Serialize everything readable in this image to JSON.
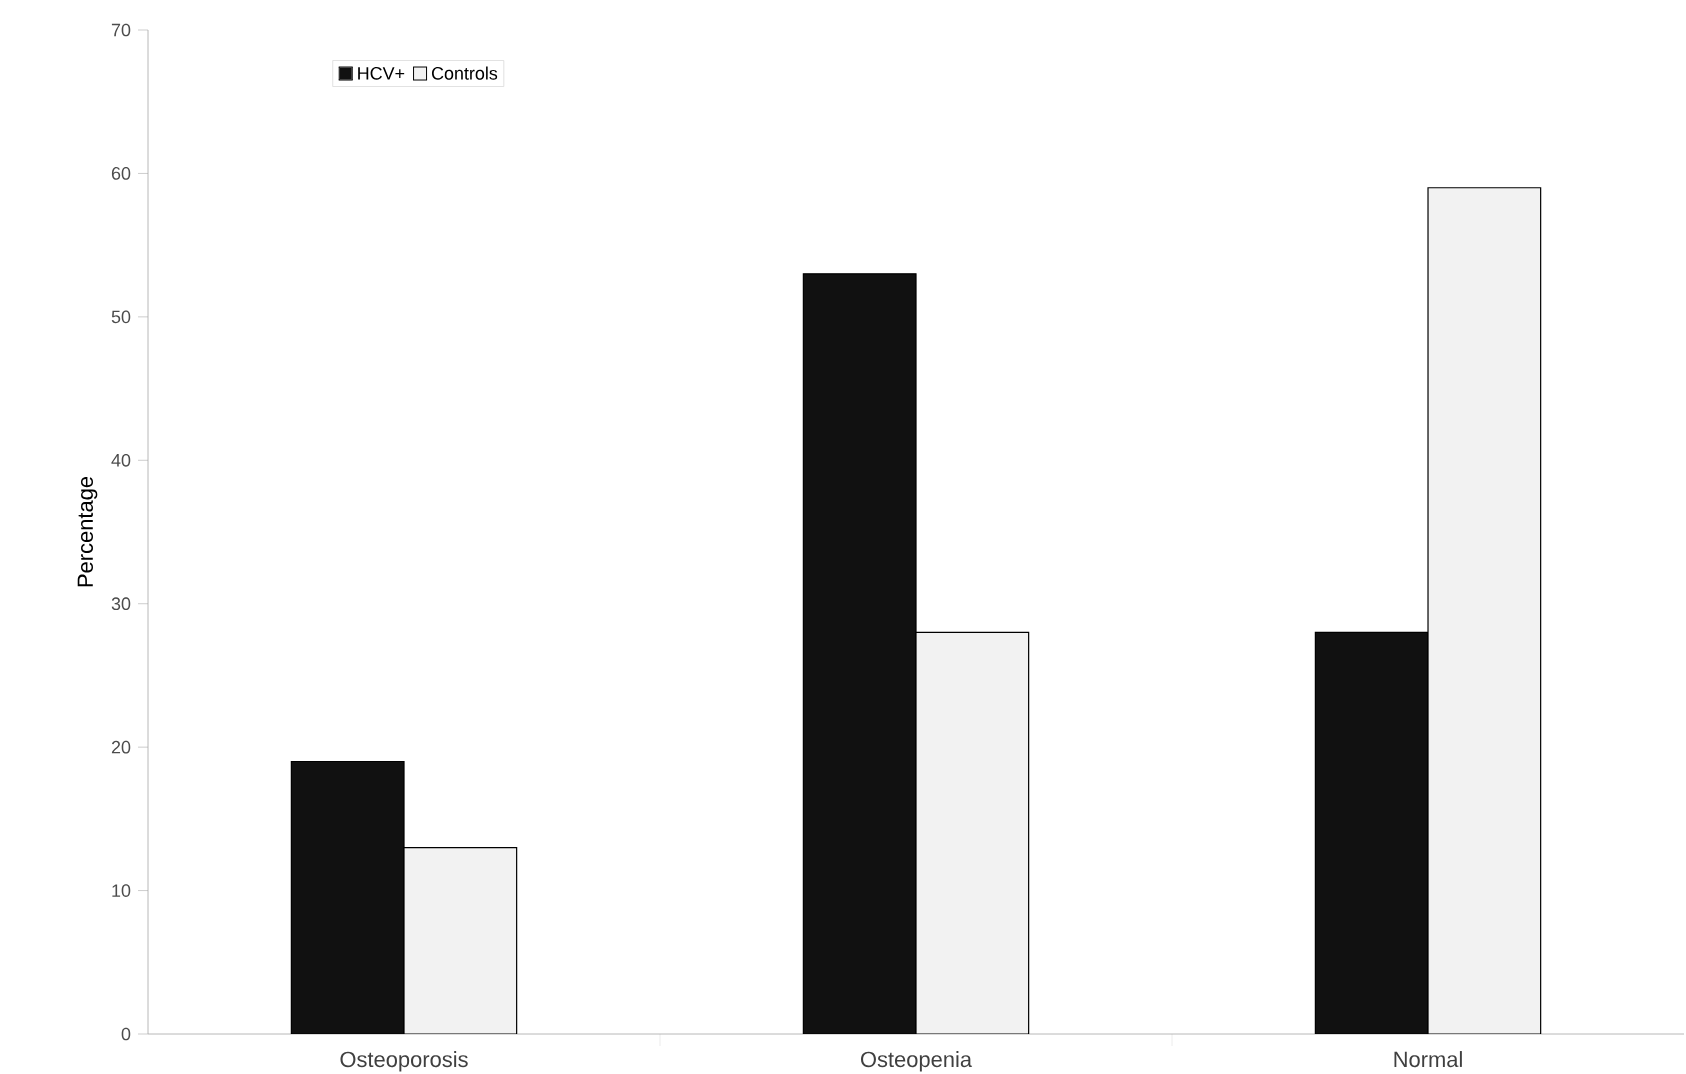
{
  "chart_data": {
    "type": "bar",
    "ylabel": "Percentage",
    "categories": [
      "Osteoporosis",
      "Osteopenia",
      "Normal"
    ],
    "series": [
      {
        "name": "HCV+",
        "color": "#111111",
        "values": [
          19,
          53,
          28
        ]
      },
      {
        "name": "Controls",
        "color": "#f2f2f2",
        "values": [
          13,
          28,
          59
        ]
      }
    ],
    "ylim": [
      0,
      70
    ],
    "yticks": [
      0,
      10,
      20,
      30,
      40,
      50,
      60,
      70
    ],
    "grid": false,
    "legend": "top left"
  }
}
